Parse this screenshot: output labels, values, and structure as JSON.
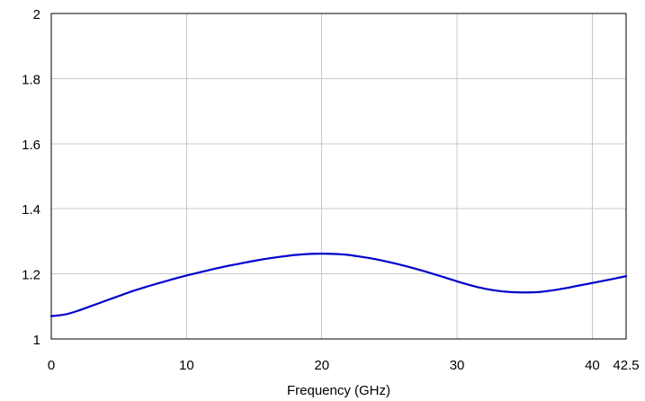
{
  "chart_data": {
    "type": "line",
    "title": "",
    "xlabel": "Frequency (GHz)",
    "ylabel": "",
    "xlim": [
      0,
      42.5
    ],
    "ylim": [
      1,
      2
    ],
    "x_ticks": [
      0,
      10,
      20,
      30,
      40,
      42.5
    ],
    "x_tick_labels": [
      "0",
      "10",
      "20",
      "30",
      "40",
      "42.5"
    ],
    "y_ticks": [
      1,
      1.2,
      1.4,
      1.6,
      1.8,
      2
    ],
    "y_tick_labels": [
      "1",
      "1.2",
      "1.4",
      "1.6",
      "1.8",
      "2"
    ],
    "grid": true,
    "series": [
      {
        "color": "#0000cc",
        "x": [
          0,
          1,
          2,
          3,
          4,
          5,
          6,
          7,
          8,
          9,
          10,
          11,
          12,
          13,
          14,
          15,
          16,
          17,
          18,
          19,
          20,
          21,
          22,
          23,
          24,
          25,
          26,
          27,
          28,
          29,
          30,
          31,
          32,
          33,
          34,
          35,
          36,
          37,
          38,
          39,
          40,
          41,
          42.5
        ],
        "y": [
          1.07,
          1.075,
          1.087,
          1.102,
          1.117,
          1.132,
          1.147,
          1.16,
          1.172,
          1.184,
          1.195,
          1.205,
          1.215,
          1.224,
          1.232,
          1.24,
          1.247,
          1.253,
          1.258,
          1.261,
          1.262,
          1.261,
          1.258,
          1.252,
          1.245,
          1.236,
          1.226,
          1.215,
          1.203,
          1.19,
          1.177,
          1.165,
          1.155,
          1.148,
          1.144,
          1.143,
          1.144,
          1.149,
          1.156,
          1.164,
          1.172,
          1.18,
          1.193
        ]
      }
    ]
  }
}
